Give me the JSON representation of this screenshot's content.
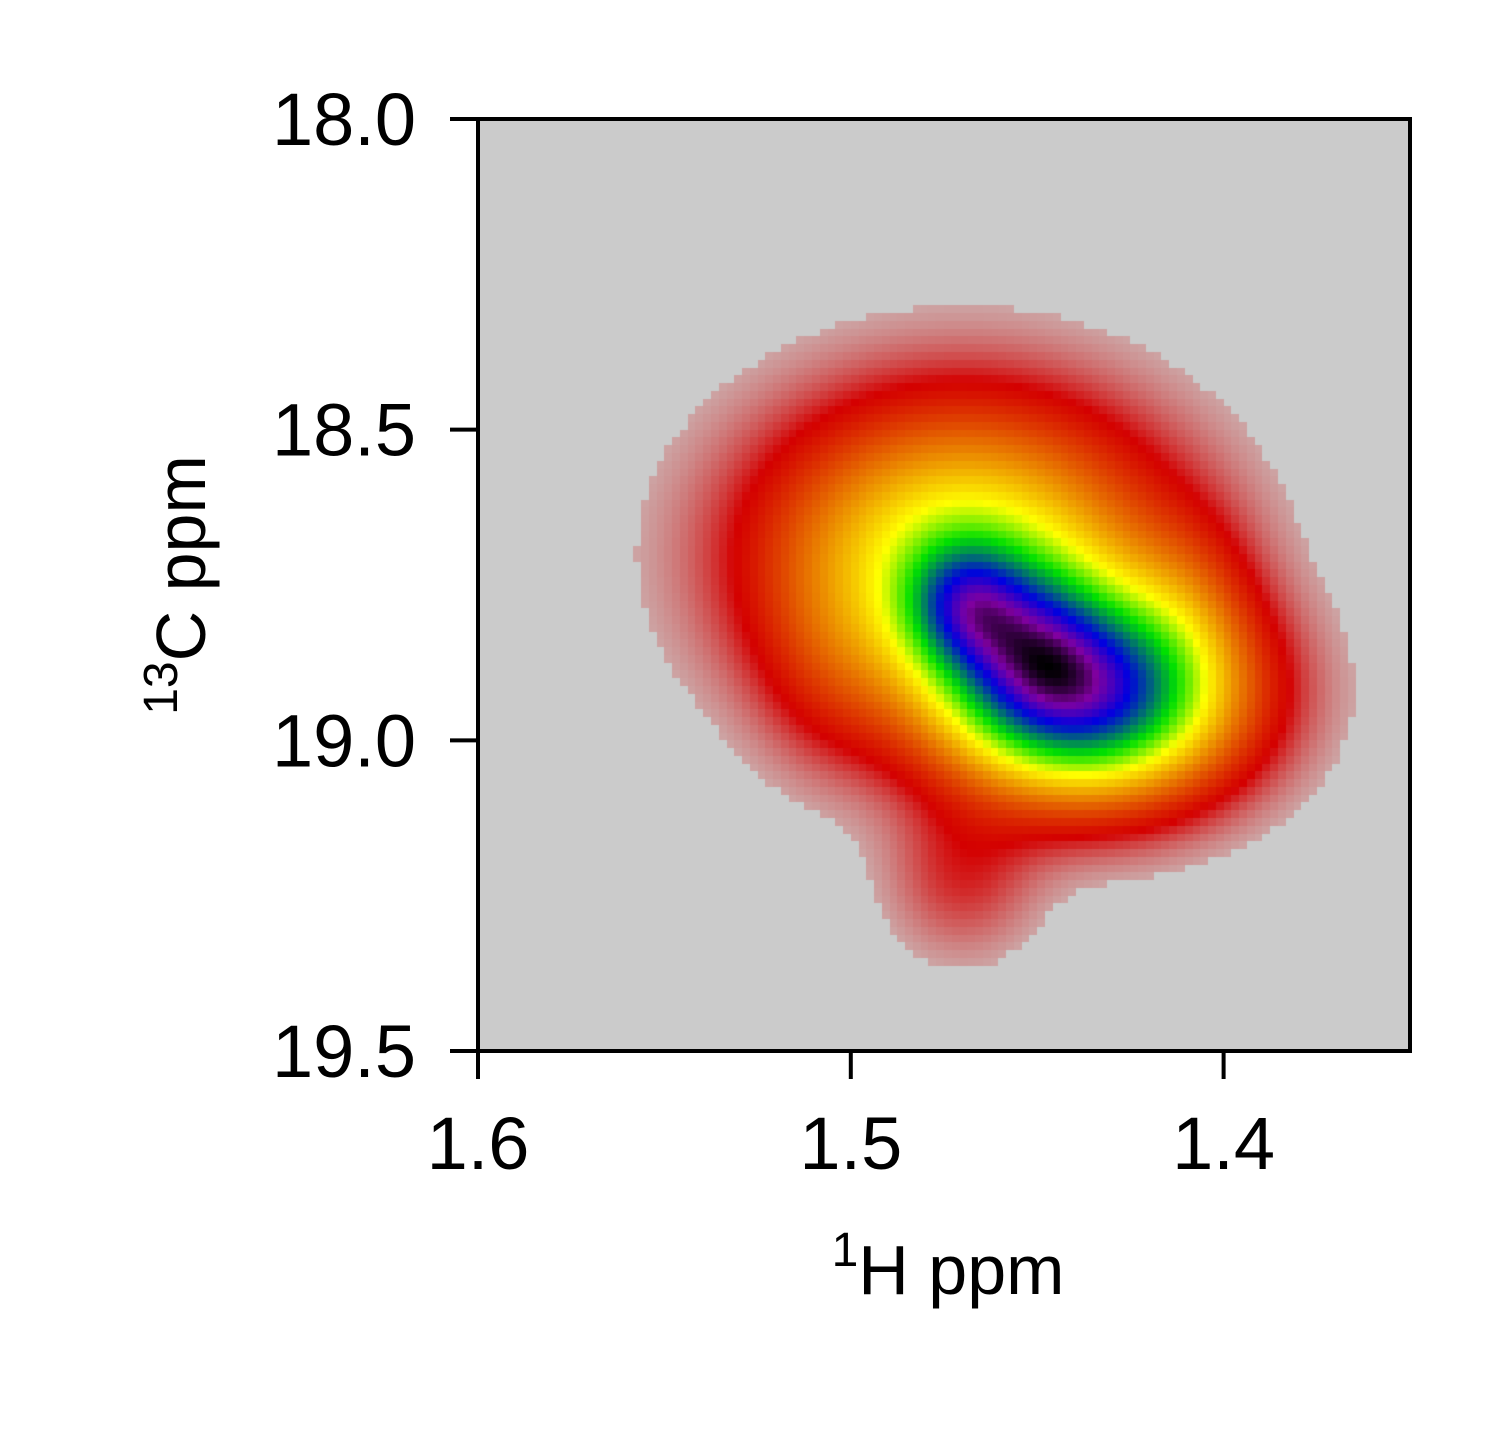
{
  "chart_data": {
    "type": "heatmap",
    "subtype": "2D NMR contour spectrum",
    "title": "",
    "xlabel": {
      "superscript": "1",
      "text": "H ppm"
    },
    "ylabel": {
      "superscript": "13",
      "text": "C ppm"
    },
    "xlim": [
      1.6,
      1.35
    ],
    "ylim": [
      18.0,
      19.5
    ],
    "x_inverted": true,
    "y_inverted": true,
    "x_ticks": [
      1.6,
      1.5,
      1.4
    ],
    "x_tick_labels": [
      "1.6",
      "1.5",
      "1.4"
    ],
    "y_ticks": [
      18.0,
      18.5,
      19.0,
      19.5
    ],
    "y_tick_labels": [
      "18.0",
      "18.5",
      "19.0",
      "19.5"
    ],
    "grid": false,
    "background_color": "#cbcbcb",
    "colormap": [
      "#cbcbcb",
      "#d40000",
      "#ffff00",
      "#00e000",
      "#0000e0",
      "#8000a0",
      "#000000"
    ],
    "peaks": [
      {
        "x": 1.41,
        "y": 18.78,
        "sx": 0.012,
        "sy": 0.1,
        "amp": 0.05
      },
      {
        "x": 1.47,
        "y": 19.22,
        "sx": 0.014,
        "sy": 0.09,
        "amp": 0.05
      },
      {
        "x": 1.505,
        "y": 18.88,
        "sx": 0.014,
        "sy": 0.12,
        "amp": 0.04
      },
      {
        "x": 1.47,
        "y": 18.7,
        "sx": 0.035,
        "sy": 0.16,
        "amp": 0.3
      },
      {
        "x": 1.47,
        "y": 18.78,
        "sx": 0.011,
        "sy": 0.07,
        "amp": 0.2
      },
      {
        "x": 1.452,
        "y": 18.84,
        "sx": 0.014,
        "sy": 0.09,
        "amp": 0.14
      },
      {
        "x": 1.436,
        "y": 18.93,
        "sx": 0.026,
        "sy": 0.11,
        "amp": 0.5
      }
    ]
  }
}
